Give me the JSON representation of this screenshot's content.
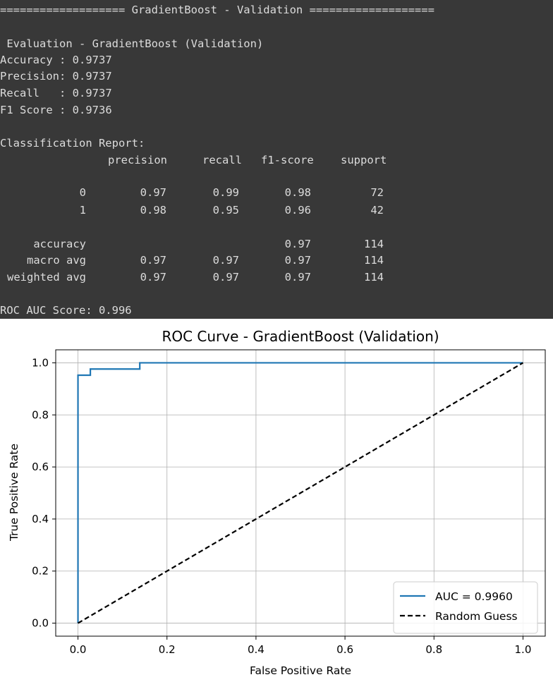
{
  "console": {
    "header": "=================== GradientBoost - Validation ===================",
    "eval_title": " Evaluation - GradientBoost (Validation)",
    "metrics": [
      {
        "label": "Accuracy :",
        "value": "0.9737"
      },
      {
        "label": "Precision:",
        "value": "0.9737"
      },
      {
        "label": "Recall   :",
        "value": "0.9737"
      },
      {
        "label": "F1 Score :",
        "value": "0.9736"
      }
    ],
    "report_title": "Classification Report:",
    "report_headers": [
      "precision",
      "recall",
      "f1-score",
      "support"
    ],
    "report_rows": [
      {
        "label": "0",
        "precision": "0.97",
        "recall": "0.99",
        "f1": "0.98",
        "support": "72"
      },
      {
        "label": "1",
        "precision": "0.98",
        "recall": "0.95",
        "f1": "0.96",
        "support": "42"
      },
      {
        "label": "accuracy",
        "precision": "",
        "recall": "",
        "f1": "0.97",
        "support": "114"
      },
      {
        "label": "macro avg",
        "precision": "0.97",
        "recall": "0.97",
        "f1": "0.97",
        "support": "114"
      },
      {
        "label": "weighted avg",
        "precision": "0.97",
        "recall": "0.97",
        "f1": "0.97",
        "support": "114"
      }
    ],
    "roc_line": "ROC AUC Score: 0.996"
  },
  "chart_data": {
    "type": "line",
    "title": "ROC Curve - GradientBoost (Validation)",
    "xlabel": "False Positive Rate",
    "ylabel": "True Positive Rate",
    "xlim": [
      -0.05,
      1.05
    ],
    "ylim": [
      -0.05,
      1.05
    ],
    "xticks": [
      0.0,
      0.2,
      0.4,
      0.6,
      0.8,
      1.0
    ],
    "yticks": [
      0.0,
      0.2,
      0.4,
      0.6,
      0.8,
      1.0
    ],
    "xtick_labels": [
      "0.0",
      "0.2",
      "0.4",
      "0.6",
      "0.8",
      "1.0"
    ],
    "ytick_labels": [
      "0.0",
      "0.2",
      "0.4",
      "0.6",
      "0.8",
      "1.0"
    ],
    "grid": true,
    "legend_position": "lower-right",
    "series": [
      {
        "name": "AUC = 0.9960",
        "color": "#1f77b4",
        "style": "solid",
        "x": [
          0.0,
          0.0,
          0.0,
          0.0278,
          0.0278,
          0.1389,
          0.1389,
          1.0
        ],
        "y": [
          0.0,
          0.0238,
          0.9524,
          0.9524,
          0.9762,
          0.9762,
          1.0,
          1.0
        ]
      },
      {
        "name": "Random Guess",
        "color": "#000000",
        "style": "dashed",
        "x": [
          0.0,
          1.0
        ],
        "y": [
          0.0,
          1.0
        ]
      }
    ]
  }
}
